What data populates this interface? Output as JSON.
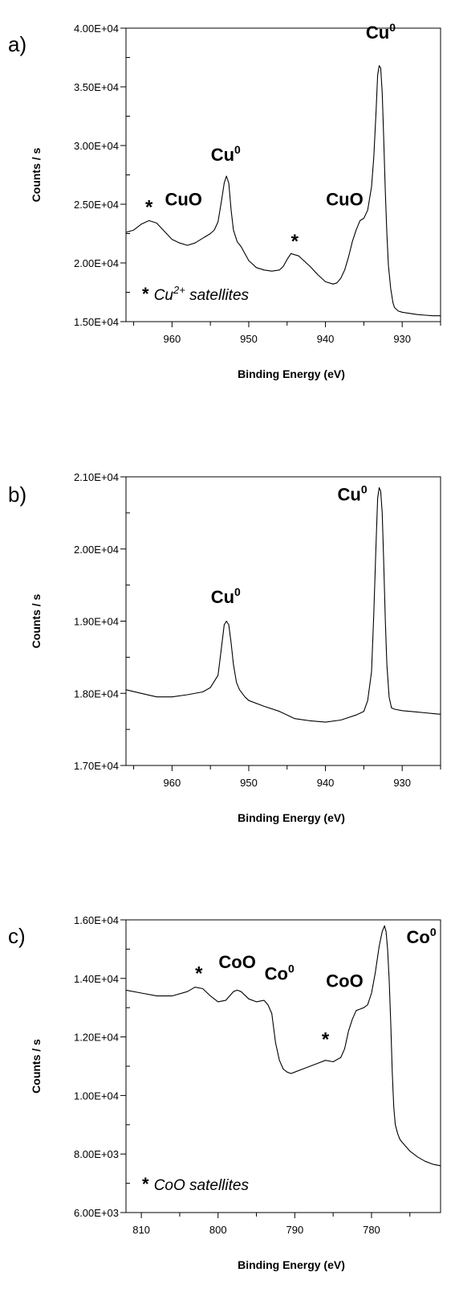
{
  "chart_data": [
    {
      "type": "line",
      "panel_label": "a)",
      "xlabel": "Binding Energy (eV)",
      "ylabel": "Counts / s",
      "xlim": [
        966,
        925
      ],
      "ylim": [
        15000,
        40000
      ],
      "x_ticks": [
        960,
        950,
        940,
        930
      ],
      "x_ticklabels": [
        "960",
        "950",
        "940",
        "930"
      ],
      "y_ticks": [
        15000,
        20000,
        25000,
        30000,
        35000,
        40000
      ],
      "y_ticklabels": [
        "1.50E+04",
        "2.00E+04",
        "2.50E+04",
        "3.00E+04",
        "3.50E+04",
        "4.00E+04"
      ],
      "annotations": [
        {
          "text": "CuO",
          "x": 958.5,
          "y": 24900
        },
        {
          "text": "Cu",
          "sup": "0",
          "x": 953.0,
          "y": 28700
        },
        {
          "text": "*",
          "x": 963.0,
          "y": 24200
        },
        {
          "text": "*",
          "x": 944.0,
          "y": 21300
        },
        {
          "text": "CuO",
          "x": 937.5,
          "y": 24900
        },
        {
          "text": "Cu",
          "sup": "0",
          "x": 932.8,
          "y": 39100
        }
      ],
      "note": {
        "star": "* ",
        "text": "Cu",
        "sup": "2+",
        "rest": " satellites"
      },
      "series": [
        {
          "x": [
            966,
            965,
            964,
            963,
            962,
            961,
            960,
            959,
            958,
            957,
            956,
            955,
            954.5,
            954,
            953.5,
            953.2,
            952.9,
            952.6,
            952.3,
            952,
            951.5,
            951,
            950,
            949,
            948,
            947,
            946,
            945.5,
            945,
            944.5,
            944,
            943.5,
            943,
            942,
            941,
            940,
            939,
            938.5,
            938,
            937.5,
            937,
            936.5,
            936,
            935.5,
            935,
            934.5,
            934,
            933.7,
            933.4,
            933.2,
            933.0,
            932.8,
            932.6,
            932.4,
            932.2,
            932.0,
            931.8,
            931.5,
            931.2,
            931.0,
            930.5,
            930,
            929,
            928,
            927,
            926,
            925
          ],
          "y": [
            22600,
            22800,
            23300,
            23600,
            23400,
            22700,
            22000,
            21700,
            21500,
            21700,
            22100,
            22500,
            22800,
            23500,
            25500,
            26800,
            27400,
            26800,
            24500,
            22800,
            21800,
            21400,
            20200,
            19600,
            19400,
            19300,
            19400,
            19700,
            20300,
            20800,
            20700,
            20600,
            20300,
            19700,
            19000,
            18400,
            18200,
            18300,
            18700,
            19400,
            20500,
            21800,
            22800,
            23600,
            23800,
            24500,
            26500,
            29000,
            33000,
            36000,
            36800,
            36600,
            34500,
            30500,
            26000,
            22500,
            19800,
            17800,
            16600,
            16200,
            15900,
            15800,
            15700,
            15600,
            15550,
            15500,
            15500
          ]
        }
      ]
    },
    {
      "type": "line",
      "panel_label": "b)",
      "xlabel": "Binding Energy (eV)",
      "ylabel": "Counts / s",
      "xlim": [
        966,
        925
      ],
      "ylim": [
        17000,
        21000
      ],
      "x_ticks": [
        960,
        950,
        940,
        930
      ],
      "x_ticklabels": [
        "960",
        "950",
        "940",
        "930"
      ],
      "y_ticks": [
        17000,
        18000,
        19000,
        20000,
        21000
      ],
      "y_ticklabels": [
        "1.70E+04",
        "1.80E+04",
        "1.90E+04",
        "2.00E+04",
        "2.10E+04"
      ],
      "annotations": [
        {
          "text": "Cu",
          "sup": "0",
          "x": 953.0,
          "y": 19250
        },
        {
          "text": "Cu",
          "sup": "0",
          "x": 936.5,
          "y": 20670
        }
      ],
      "series": [
        {
          "x": [
            966,
            964,
            962,
            960,
            958,
            956,
            955,
            954,
            953.6,
            953.2,
            952.9,
            952.6,
            952.3,
            952,
            951.6,
            951.2,
            950.5,
            950,
            948,
            946,
            944,
            942,
            940,
            938,
            936,
            935,
            934.5,
            934,
            933.7,
            933.4,
            933.2,
            933,
            932.8,
            932.6,
            932.4,
            932.2,
            932.0,
            931.7,
            931.4,
            931.0,
            930,
            929,
            928,
            927,
            926,
            925
          ],
          "y": [
            18050,
            18000,
            17950,
            17950,
            17980,
            18020,
            18080,
            18250,
            18600,
            18950,
            19000,
            18950,
            18700,
            18400,
            18150,
            18050,
            17950,
            17900,
            17820,
            17750,
            17650,
            17620,
            17600,
            17630,
            17700,
            17750,
            17900,
            18300,
            19100,
            20100,
            20700,
            20850,
            20800,
            20500,
            19800,
            19000,
            18400,
            17950,
            17800,
            17780,
            17760,
            17750,
            17740,
            17730,
            17720,
            17710
          ]
        }
      ]
    },
    {
      "type": "line",
      "panel_label": "c)",
      "xlabel": "Binding Energy (eV)",
      "ylabel": "Counts / s",
      "xlim": [
        812,
        771
      ],
      "ylim": [
        6000,
        16000
      ],
      "x_ticks": [
        810,
        800,
        790,
        780
      ],
      "x_ticklabels": [
        "810",
        "800",
        "790",
        "780"
      ],
      "y_ticks": [
        6000,
        8000,
        10000,
        12000,
        14000,
        16000
      ],
      "y_ticklabels": [
        "6.00E+03",
        "8.00E+03",
        "1.00E+04",
        "1.20E+04",
        "1.40E+04",
        "1.60E+04"
      ],
      "annotations": [
        {
          "text": "CoO",
          "x": 797.5,
          "y": 14350
        },
        {
          "text": "*",
          "x": 802.5,
          "y": 13950
        },
        {
          "text": "Co",
          "sup": "0",
          "x": 792.0,
          "y": 13950
        },
        {
          "text": "CoO",
          "x": 783.5,
          "y": 13700
        },
        {
          "text": "*",
          "x": 786.0,
          "y": 11700
        },
        {
          "text": "Co",
          "sup": "0",
          "x": 773.5,
          "y": 15200
        }
      ],
      "note": {
        "star": "* ",
        "text": "CoO satellites",
        "sup": "",
        "rest": ""
      },
      "series": [
        {
          "x": [
            812,
            810,
            808,
            806,
            804,
            803,
            802,
            801,
            800,
            799,
            798,
            797.5,
            797,
            796,
            795,
            794,
            793.5,
            793,
            792.5,
            792,
            791.5,
            791,
            790.5,
            790,
            789,
            788,
            787,
            786,
            785,
            784,
            783.5,
            783,
            782.5,
            782,
            781.5,
            781,
            780.5,
            780,
            779.5,
            779,
            778.6,
            778.3,
            778.1,
            777.9,
            777.7,
            777.5,
            777.3,
            777.1,
            776.9,
            776.6,
            776.3,
            776,
            775.5,
            775,
            774,
            773,
            772,
            771
          ],
          "y": [
            13600,
            13500,
            13400,
            13400,
            13550,
            13700,
            13650,
            13400,
            13200,
            13250,
            13550,
            13600,
            13550,
            13300,
            13200,
            13250,
            13100,
            12800,
            11800,
            11200,
            10900,
            10800,
            10750,
            10800,
            10900,
            11000,
            11100,
            11200,
            11150,
            11300,
            11600,
            12200,
            12600,
            12900,
            12950,
            13000,
            13100,
            13500,
            14200,
            15100,
            15600,
            15800,
            15600,
            15000,
            14000,
            12500,
            10800,
            9600,
            9000,
            8700,
            8500,
            8400,
            8250,
            8100,
            7900,
            7750,
            7650,
            7600
          ]
        }
      ]
    }
  ]
}
